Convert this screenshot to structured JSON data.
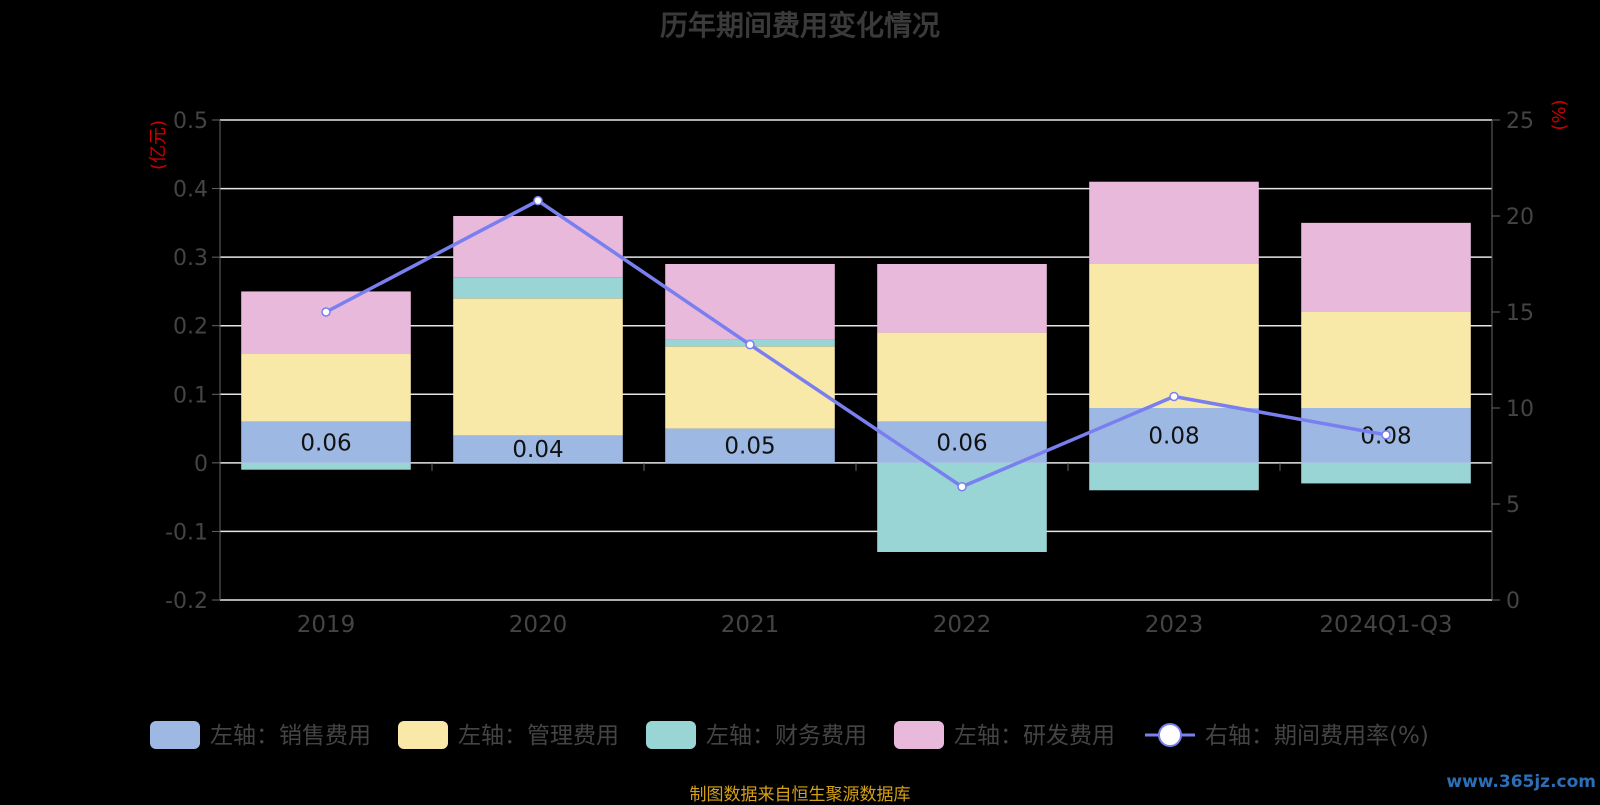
{
  "chart_data": {
    "type": "bar",
    "title": "历年期间费用变化情况",
    "categories": [
      "2019",
      "2020",
      "2021",
      "2022",
      "2023",
      "2024Q1-Q3"
    ],
    "left_axis": {
      "label": "(亿元)",
      "ylim": [
        -0.2,
        0.5
      ],
      "ticks": [
        "0.5",
        "0.4",
        "0.3",
        "0.2",
        "0.1",
        "0",
        "-0.1",
        "-0.2"
      ]
    },
    "right_axis": {
      "label": "(%)",
      "ylim": [
        0,
        25
      ],
      "ticks": [
        "25",
        "20",
        "15",
        "10",
        "5",
        "0"
      ]
    },
    "series": [
      {
        "name": "左轴：销售费用",
        "type": "bar",
        "color": "#9db9e3",
        "values": [
          0.06,
          0.04,
          0.05,
          0.06,
          0.08,
          0.08
        ],
        "data_labels": [
          "0.06",
          "0.04",
          "0.05",
          "0.06",
          "0.08",
          "0.08"
        ]
      },
      {
        "name": "左轴：管理费用",
        "type": "bar",
        "color": "#f9e9a9",
        "values": [
          0.1,
          0.2,
          0.12,
          0.13,
          0.21,
          0.14
        ]
      },
      {
        "name": "左轴：财务费用",
        "type": "bar",
        "color": "#99d5d5",
        "values": [
          -0.01,
          0.03,
          0.01,
          -0.13,
          -0.04,
          -0.03
        ]
      },
      {
        "name": "左轴：研发费用",
        "type": "bar",
        "color": "#e8b9db",
        "values": [
          0.09,
          0.09,
          0.11,
          0.1,
          0.12,
          0.13
        ]
      },
      {
        "name": "右轴：期间费用率(%)",
        "type": "line",
        "axis": "right",
        "color": "#7a7ff0",
        "values": [
          15.0,
          20.8,
          13.3,
          5.9,
          10.6,
          8.6
        ]
      }
    ],
    "grid": true,
    "legend_position": "bottom"
  },
  "footer": {
    "source": "制图数据来自恒生聚源数据库",
    "watermark": "www.365jz.com"
  }
}
